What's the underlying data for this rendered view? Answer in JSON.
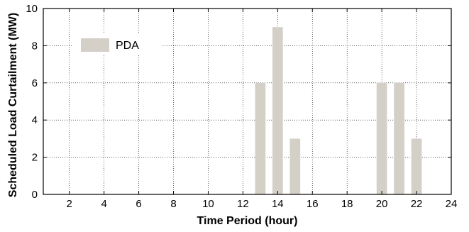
{
  "chart_data": {
    "type": "bar",
    "title": "",
    "xlabel": "Time Period (hour)",
    "ylabel": "Scheduled Load Curtailment (MW)",
    "xlim": [
      0.5,
      24
    ],
    "ylim": [
      0,
      10
    ],
    "x_ticks": [
      2,
      4,
      6,
      8,
      10,
      12,
      14,
      16,
      18,
      20,
      22,
      24
    ],
    "y_ticks": [
      0,
      2,
      4,
      6,
      8,
      10
    ],
    "grid": true,
    "legend_position": "top-left",
    "series": [
      {
        "name": "PDA",
        "color": "#d4d0c8",
        "points": [
          {
            "x": 13,
            "y": 6
          },
          {
            "x": 14,
            "y": 9
          },
          {
            "x": 15,
            "y": 3
          },
          {
            "x": 20,
            "y": 6
          },
          {
            "x": 21,
            "y": 6
          },
          {
            "x": 22,
            "y": 3
          }
        ]
      }
    ]
  }
}
